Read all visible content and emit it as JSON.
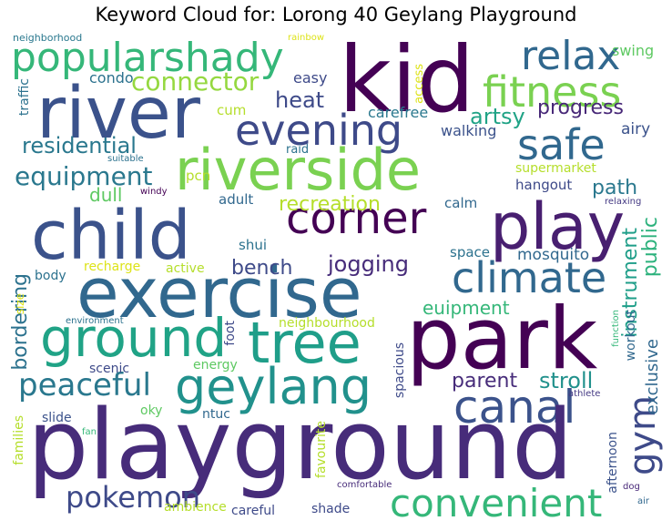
{
  "title": "Keyword Cloud for: Lorong 40 Geylang Playground",
  "words": {
    "playground": "playground",
    "kid": "kid",
    "park": "park",
    "exercise": "exercise",
    "child": "child",
    "riverside": "riverside",
    "river": "river",
    "play": "play",
    "tree": "tree",
    "ground": "ground",
    "geylang": "geylang",
    "corner": "corner",
    "convenient": "convenient",
    "fitness": "fitness",
    "climate": "climate",
    "canal": "canal",
    "evening": "evening",
    "safe": "safe",
    "relax": "relax",
    "popularshady": "popularshady",
    "gym": "gym",
    "peaceful": "peaceful",
    "pokemon": "pokemon",
    "equipment": "equipment",
    "connector": "connector",
    "residential": "residential",
    "jogging": "jogging",
    "heat": "heat",
    "artsy": "artsy",
    "progress": "progress",
    "path": "path",
    "public": "public",
    "instrument": "instrument",
    "bench": "bench",
    "recreation": "recreation",
    "stroll": "stroll",
    "parent": "parent",
    "euipment": "euipment",
    "bordering": "bordering",
    "dull": "dull",
    "mosquito": "mosquito",
    "easy": "easy",
    "condo": "condo",
    "swing": "swing",
    "airy": "airy",
    "walking": "walking",
    "carefree": "carefree",
    "hangout": "hangout",
    "supermarket": "supermarket",
    "space": "space",
    "calm": "calm",
    "shui": "shui",
    "adult": "adult",
    "raid": "raid",
    "cum": "cum",
    "pcn": "pcn",
    "access": "access",
    "traffic": "traffic",
    "neighborhood": "neighborhood",
    "rainbow": "rainbow",
    "suitable": "suitable",
    "windy": "windy",
    "relaxing": "relaxing",
    "recharge": "recharge",
    "active": "active",
    "body": "body",
    "size": "size",
    "environment": "environment",
    "neighbourhood": "neighbourhood",
    "foot": "foot",
    "energy": "energy",
    "scenic": "scenic",
    "workout": "workout",
    "function": "function",
    "exclusive": "exclusive",
    "spacious": "spacious",
    "afternoon": "afternoon",
    "oky": "oky",
    "ntuc": "ntuc",
    "slide": "slide",
    "favourite": "favourite",
    "athlete": "athlete",
    "fan": "fan",
    "families": "families",
    "ambience": "ambience",
    "careful": "careful",
    "shade": "shade",
    "comfortable": "comfortable",
    "dog": "dog",
    "air": "air"
  }
}
